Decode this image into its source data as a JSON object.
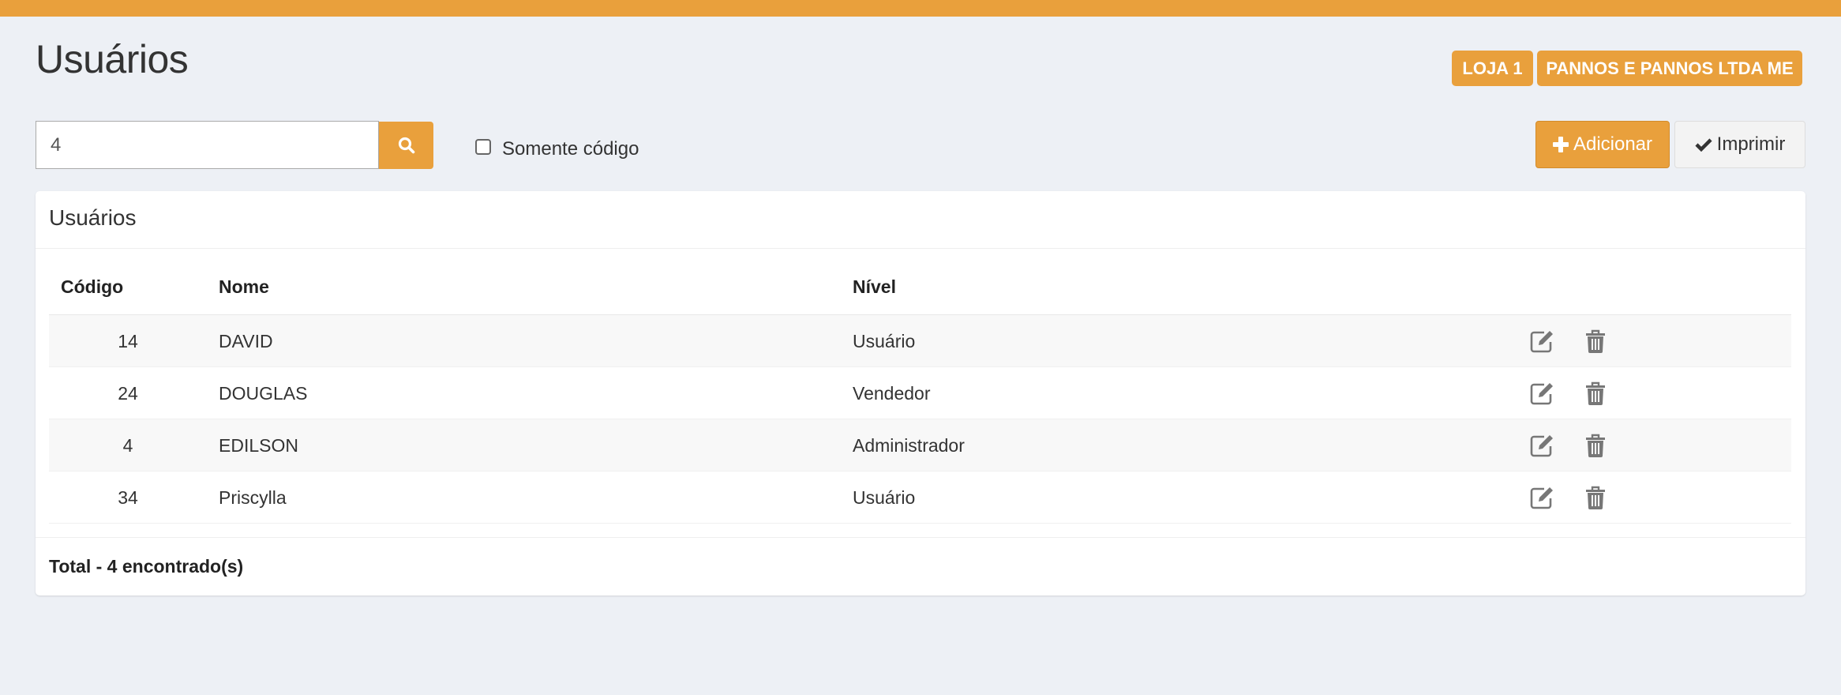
{
  "header": {
    "title": "Usuários",
    "badges": [
      "LOJA 1",
      "PANNOS E PANNOS LTDA ME"
    ]
  },
  "colors": {
    "accent": "#e9a03c",
    "background": "#edf0f5"
  },
  "search": {
    "value": "4",
    "icon": "search-icon",
    "only_code_label": "Somente código",
    "only_code_checked": false
  },
  "toolbar": {
    "add_label": "Adicionar",
    "add_icon": "plus-icon",
    "print_label": "Imprimir",
    "print_icon": "check-icon"
  },
  "panel": {
    "title": "Usuários",
    "columns": [
      "Código",
      "Nome",
      "Nível"
    ],
    "rows": [
      {
        "code": "14",
        "name": "DAVID",
        "level": "Usuário"
      },
      {
        "code": "24",
        "name": "DOUGLAS",
        "level": "Vendedor"
      },
      {
        "code": "4",
        "name": "EDILSON",
        "level": "Administrador"
      },
      {
        "code": "34",
        "name": "Priscylla",
        "level": "Usuário"
      }
    ],
    "total": "Total - 4 encontrado(s)"
  }
}
